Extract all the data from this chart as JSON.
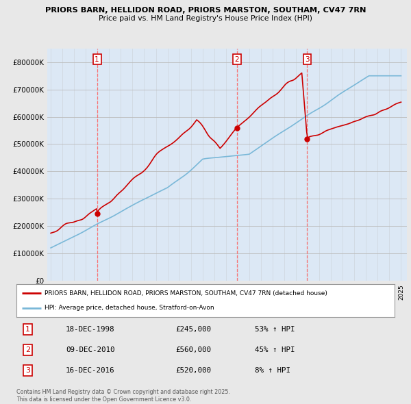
{
  "title_line1": "PRIORS BARN, HELLIDON ROAD, PRIORS MARSTON, SOUTHAM, CV47 7RN",
  "title_line2": "Price paid vs. HM Land Registry's House Price Index (HPI)",
  "bg_color": "#e8e8e8",
  "plot_bg_color": "#dce8f5",
  "hpi_line_color": "#7ab8d8",
  "price_line_color": "#cc0000",
  "dashed_line_color": "#ff6666",
  "sale_marker_color": "#cc0000",
  "legend_line1": "PRIORS BARN, HELLIDON ROAD, PRIORS MARSTON, SOUTHAM, CV47 7RN (detached house)",
  "legend_line2": "HPI: Average price, detached house, Stratford-on-Avon",
  "table_rows": [
    {
      "num": "1",
      "date": "18-DEC-1998",
      "price": "£245,000",
      "pct": "53% ↑ HPI"
    },
    {
      "num": "2",
      "date": "09-DEC-2010",
      "price": "£560,000",
      "pct": "45% ↑ HPI"
    },
    {
      "num": "3",
      "date": "16-DEC-2016",
      "price": "£520,000",
      "pct": "8% ↑ HPI"
    }
  ],
  "footer_text": "Contains HM Land Registry data © Crown copyright and database right 2025.\nThis data is licensed under the Open Government Licence v3.0.",
  "ylim": [
    0,
    850000
  ],
  "yticks": [
    0,
    100000,
    200000,
    300000,
    400000,
    500000,
    600000,
    700000,
    800000
  ],
  "xlim_start": 1994.7,
  "xlim_end": 2025.5,
  "transaction_years": [
    1998.96,
    2010.94,
    2016.96
  ],
  "transaction_prices": [
    245000,
    560000,
    520000
  ],
  "transaction_labels": [
    "1",
    "2",
    "3"
  ]
}
